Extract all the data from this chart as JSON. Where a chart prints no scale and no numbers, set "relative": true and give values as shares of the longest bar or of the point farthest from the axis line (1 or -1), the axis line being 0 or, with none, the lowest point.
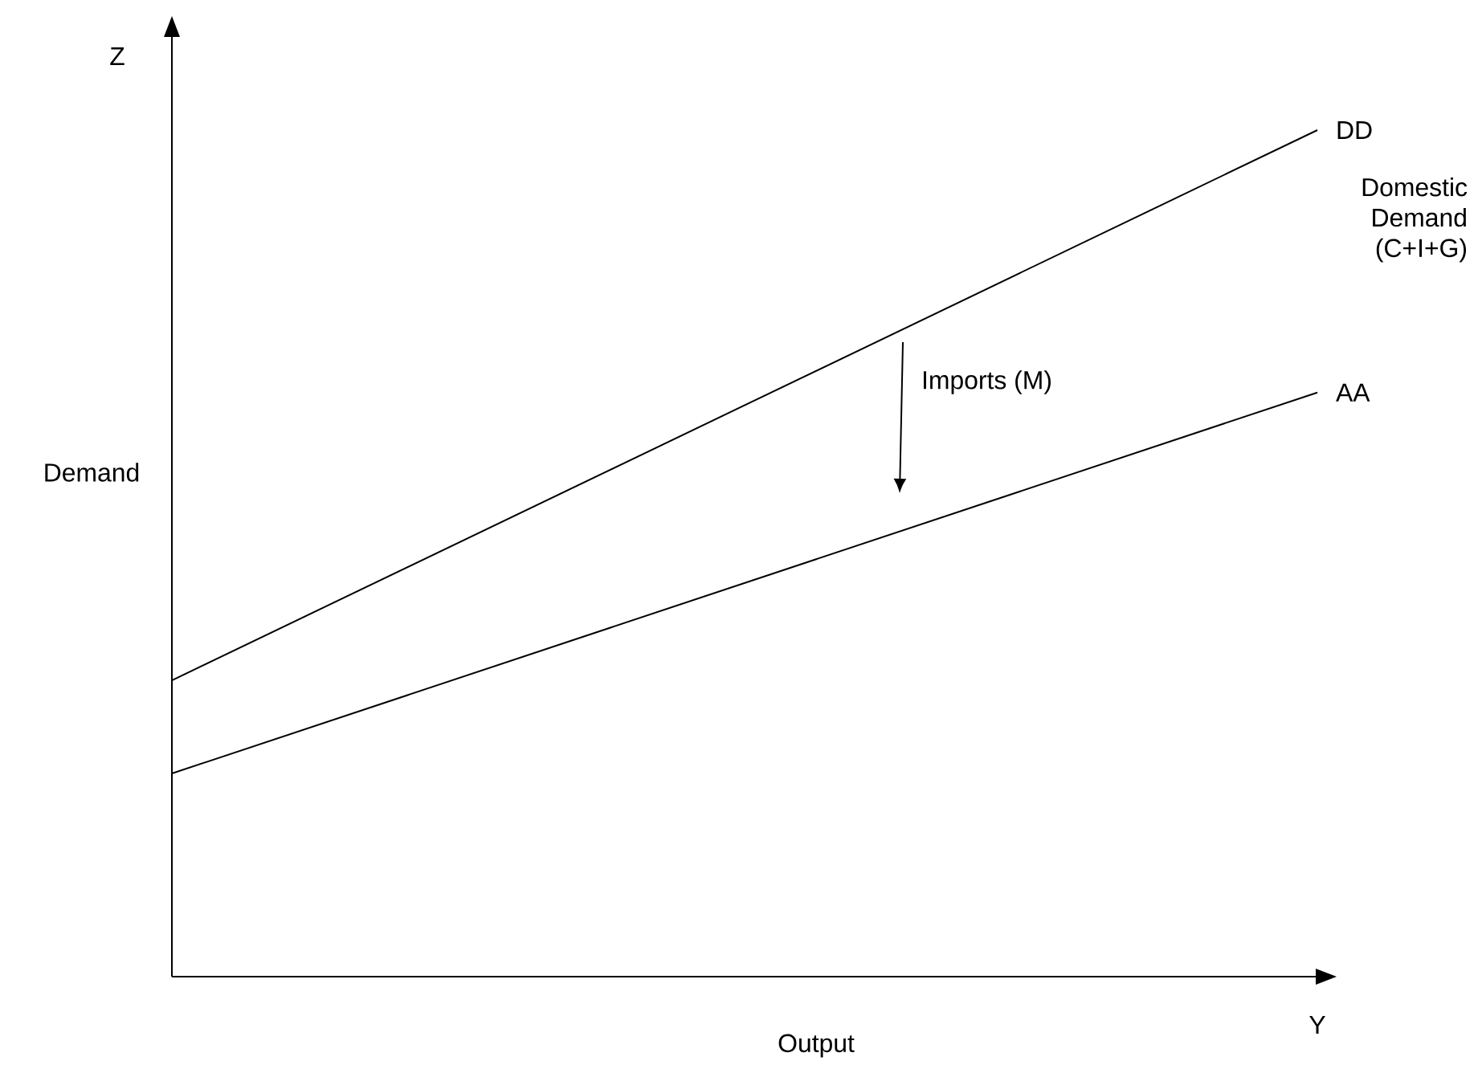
{
  "chart_data": {
    "type": "line",
    "relative": true,
    "xlabel": "Output",
    "ylabel": "Demand",
    "categories": [
      null,
      null
    ],
    "marker": "none",
    "series": [
      {
        "name": "DD",
        "color": "#000000",
        "values": [
          0.35,
          1.0
        ]
      },
      {
        "name": "AA",
        "color": "#000000",
        "values": [
          0.24,
          0.69
        ]
      }
    ],
    "annotations": [
      "Imports (M)",
      "Domestic Demand (C+I+G)",
      "Z",
      "Y"
    ]
  }
}
